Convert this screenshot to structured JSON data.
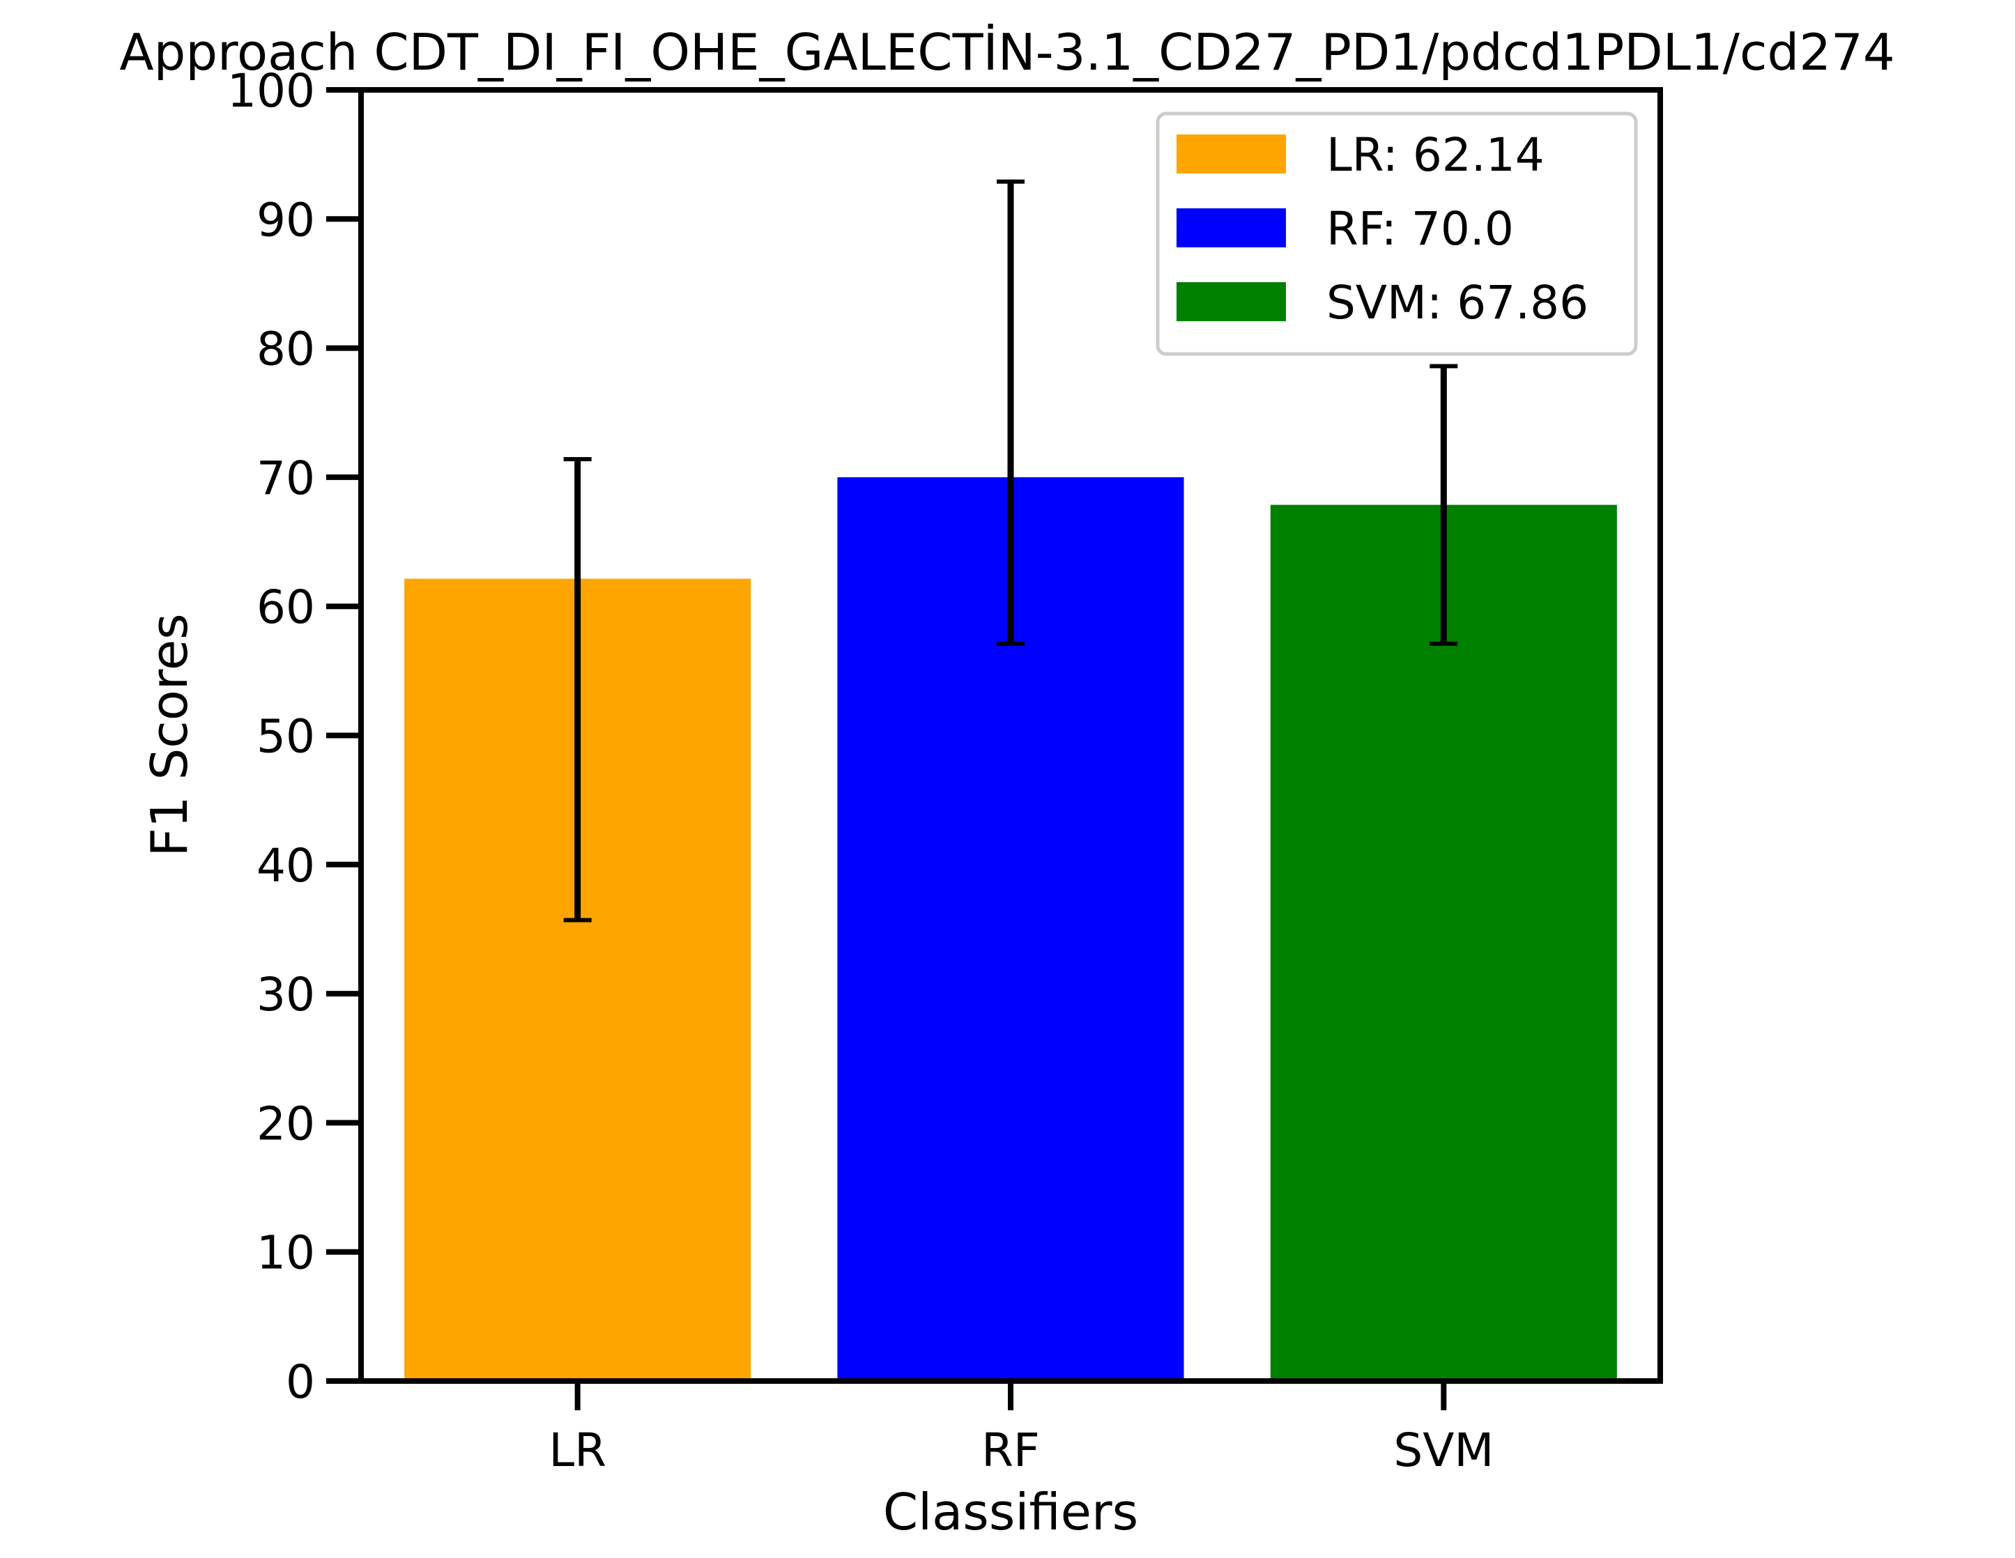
{
  "chart_data": {
    "type": "bar",
    "title": "Approach CDT_DI_FI_OHE_GALECTİN-3.1_CD27_PD1/pdcd1PDL1/cd274",
    "xlabel": "Classifiers",
    "ylabel": "F1 Scores",
    "ylim": [
      0,
      100
    ],
    "yticks": [
      0,
      10,
      20,
      30,
      40,
      50,
      60,
      70,
      80,
      90,
      100
    ],
    "categories": [
      "LR",
      "RF",
      "SVM"
    ],
    "values": [
      62.14,
      70.0,
      67.86
    ],
    "error_low": [
      35.7,
      57.1,
      57.1
    ],
    "error_high": [
      71.4,
      92.9,
      78.6
    ],
    "colors": [
      "#ffa500",
      "#0000ff",
      "#008000"
    ],
    "legend": {
      "placement": "top-right",
      "entries": [
        "LR: 62.14",
        "RF: 70.0",
        "SVM: 67.86"
      ]
    },
    "grid": false
  }
}
